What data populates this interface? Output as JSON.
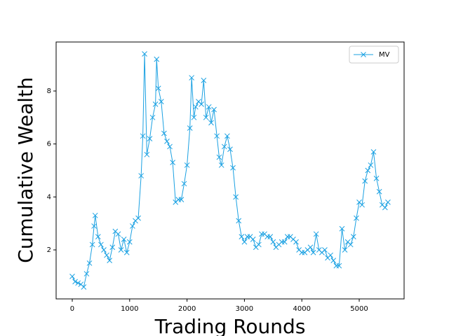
{
  "chart_data": {
    "type": "line",
    "xlabel": "Trading Rounds",
    "ylabel": "Cumulative Wealth",
    "xlim": [
      -281,
      5782
    ],
    "ylim": [
      0.15,
      9.85
    ],
    "xticks": [
      0,
      1000,
      2000,
      3000,
      4000,
      5000
    ],
    "yticks": [
      2,
      4,
      6,
      8
    ],
    "grid": false,
    "legend": "upper right",
    "x": [
      0,
      50,
      100,
      150,
      200,
      250,
      300,
      350,
      380,
      400,
      450,
      500,
      550,
      600,
      650,
      700,
      750,
      800,
      850,
      900,
      950,
      1000,
      1050,
      1100,
      1150,
      1200,
      1230,
      1260,
      1300,
      1350,
      1400,
      1450,
      1470,
      1500,
      1550,
      1600,
      1650,
      1700,
      1750,
      1800,
      1850,
      1900,
      1950,
      2000,
      2050,
      2080,
      2120,
      2150,
      2200,
      2250,
      2290,
      2330,
      2380,
      2420,
      2470,
      2520,
      2560,
      2600,
      2650,
      2700,
      2750,
      2800,
      2850,
      2900,
      2950,
      3000,
      3050,
      3100,
      3150,
      3200,
      3250,
      3300,
      3350,
      3400,
      3450,
      3500,
      3550,
      3600,
      3650,
      3700,
      3750,
      3800,
      3850,
      3900,
      3950,
      4000,
      4050,
      4100,
      4150,
      4200,
      4250,
      4300,
      4350,
      4400,
      4450,
      4500,
      4550,
      4600,
      4650,
      4700,
      4750,
      4800,
      4850,
      4900,
      4950,
      5000,
      5050,
      5100,
      5150,
      5200,
      5250,
      5300,
      5350,
      5400,
      5450,
      5500
    ],
    "series": [
      {
        "name": "MV",
        "color": "#1ba1e2",
        "marker": "x",
        "values": [
          1.0,
          0.8,
          0.75,
          0.7,
          0.6,
          1.1,
          1.5,
          2.2,
          2.9,
          3.3,
          2.5,
          2.2,
          2.0,
          1.8,
          1.6,
          2.1,
          2.7,
          2.6,
          2.0,
          2.4,
          1.9,
          2.3,
          2.9,
          3.1,
          3.2,
          4.8,
          6.3,
          9.4,
          5.6,
          6.2,
          7.0,
          7.5,
          9.2,
          8.1,
          7.6,
          6.4,
          6.1,
          5.9,
          5.3,
          3.8,
          3.9,
          3.9,
          4.5,
          5.2,
          6.6,
          8.5,
          7.0,
          7.4,
          7.6,
          7.5,
          8.4,
          7.0,
          7.4,
          6.8,
          7.3,
          6.3,
          5.5,
          5.2,
          5.9,
          6.3,
          5.8,
          5.1,
          4.0,
          3.1,
          2.5,
          2.3,
          2.5,
          2.5,
          2.4,
          2.1,
          2.2,
          2.6,
          2.6,
          2.5,
          2.5,
          2.3,
          2.1,
          2.2,
          2.3,
          2.3,
          2.5,
          2.5,
          2.4,
          2.3,
          2.0,
          1.9,
          1.9,
          2.0,
          2.1,
          1.9,
          2.6,
          2.0,
          1.9,
          2.0,
          1.7,
          1.8,
          1.6,
          1.4,
          1.4,
          2.8,
          2.0,
          2.3,
          2.2,
          2.5,
          3.2,
          3.8,
          3.7,
          4.6,
          5.0,
          5.2,
          5.7,
          4.7,
          4.2,
          3.7,
          3.6,
          3.8
        ]
      }
    ]
  }
}
